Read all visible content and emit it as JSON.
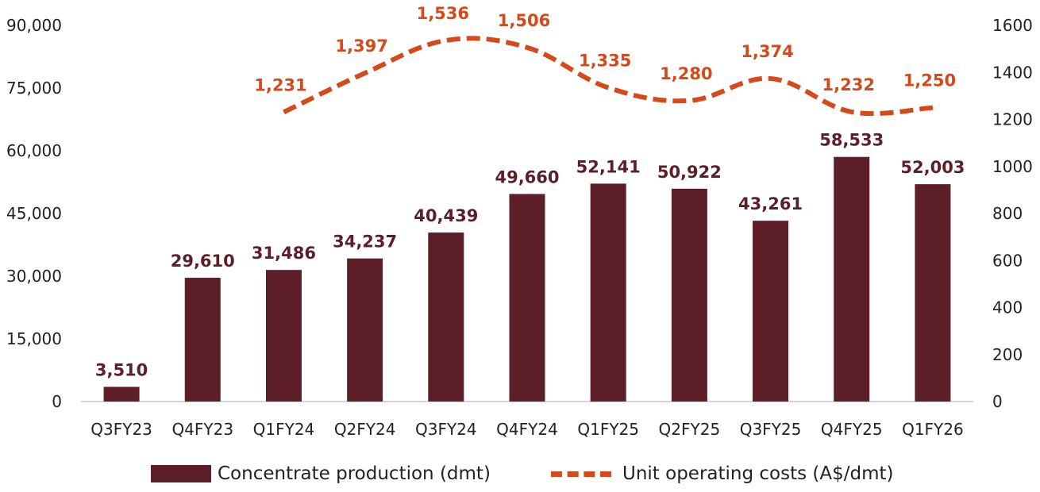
{
  "chart_data": {
    "type": "bar",
    "title": "",
    "xlabel": "",
    "categories": [
      "Q3FY23",
      "Q4FY23",
      "Q1FY24",
      "Q2FY24",
      "Q3FY24",
      "Q4FY24",
      "Q1FY25",
      "Q2FY25",
      "Q3FY25",
      "Q4FY25",
      "Q1FY26"
    ],
    "series": [
      {
        "name": "Concentrate production (dmt)",
        "type": "bar",
        "axis": "left",
        "color": "#5c1f28",
        "values": [
          3510,
          29610,
          31486,
          34237,
          40439,
          49660,
          52141,
          50922,
          43261,
          58533,
          52003
        ],
        "labels": [
          "3,510",
          "29,610",
          "31,486",
          "34,237",
          "40,439",
          "49,660",
          "52,141",
          "50,922",
          "43,261",
          "58,533",
          "52,003"
        ]
      },
      {
        "name": "Unit operating costs (A$/dmt)",
        "type": "line",
        "style": "dashed",
        "axis": "right",
        "color": "#d44a1a",
        "values": [
          null,
          null,
          1231,
          1397,
          1536,
          1506,
          1335,
          1280,
          1374,
          1232,
          1250
        ],
        "labels": [
          "",
          "",
          "1,231",
          "1,397",
          "1,536",
          "1,506",
          "1,335",
          "1,280",
          "1,374",
          "1,232",
          "1,250"
        ]
      }
    ],
    "y_left": {
      "range": [
        0,
        90000
      ],
      "ticks": [
        0,
        15000,
        30000,
        45000,
        60000,
        75000,
        90000
      ],
      "tick_labels": [
        "0",
        "15,000",
        "30,000",
        "45,000",
        "60,000",
        "75,000",
        "90,000"
      ]
    },
    "y_right": {
      "range": [
        0,
        1600
      ],
      "ticks": [
        0,
        200,
        400,
        600,
        800,
        1000,
        1200,
        1400,
        1600
      ],
      "tick_labels": [
        "0",
        "200",
        "400",
        "600",
        "800",
        "1000",
        "1200",
        "1400",
        "1600"
      ]
    },
    "grid": false,
    "legend_position": "bottom"
  }
}
